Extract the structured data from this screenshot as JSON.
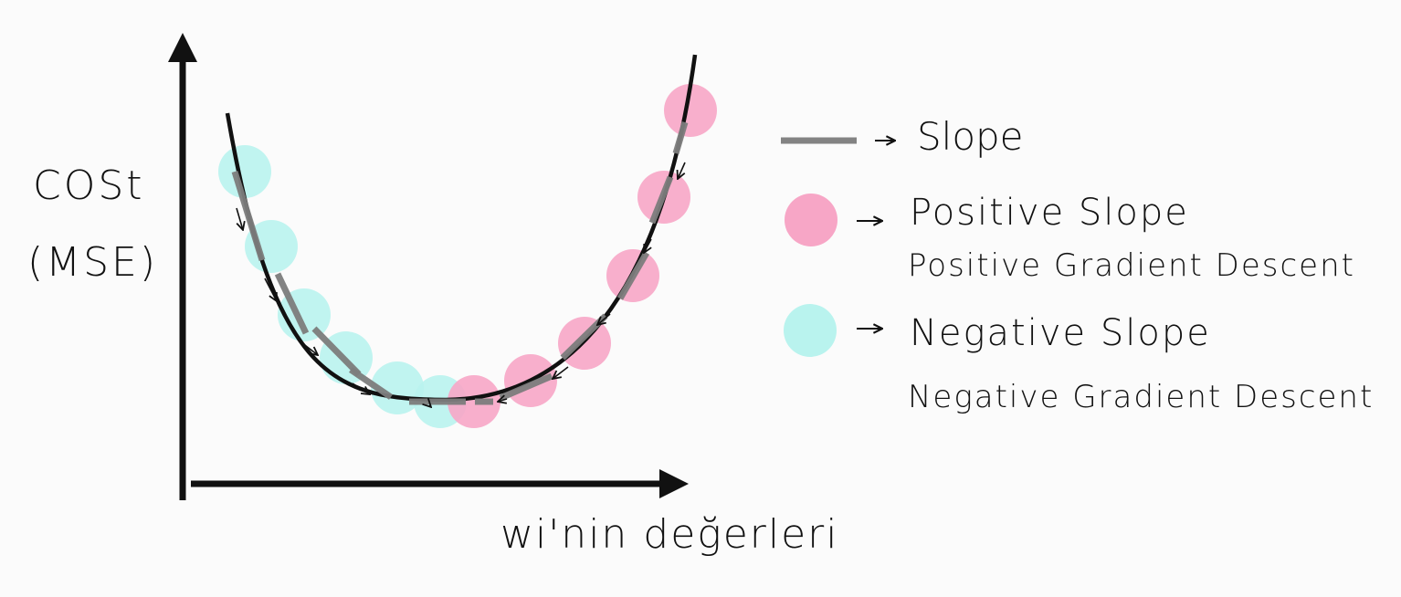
{
  "axes": {
    "y_label_line1": "COSt",
    "y_label_line2": "(MSE)",
    "x_label": "wi'nin değerleri"
  },
  "legend": {
    "slope_label": "Slope",
    "positive_label": "Positive Slope",
    "positive_sublabel": "Positive Gradient Descent",
    "negative_label": "Negative Slope",
    "negative_sublabel": "Negative Gradient Descent"
  },
  "colors": {
    "positive": "#f7a6c6",
    "negative": "#b9f3ee",
    "slope": "#7d7d7d",
    "ink": "#111111"
  },
  "points": {
    "negative_count": 6,
    "positive_count": 6
  }
}
